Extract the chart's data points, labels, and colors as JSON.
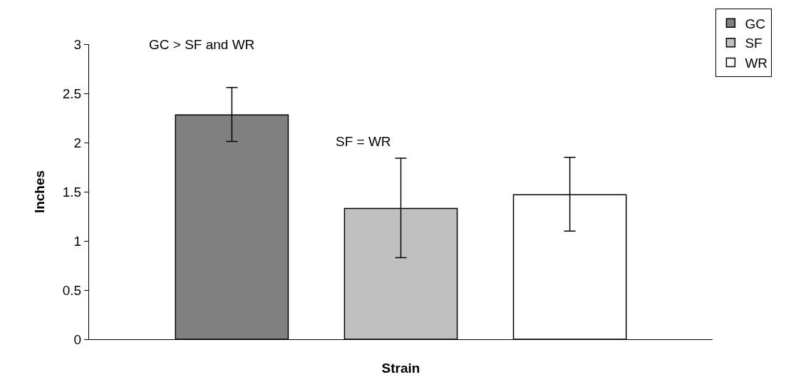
{
  "chart_data": {
    "type": "bar",
    "xlabel": "Strain",
    "ylabel": "Inches",
    "categories": [
      null
    ],
    "series": [
      {
        "name": "GC",
        "color": "#808080",
        "values": [
          2.28
        ],
        "errors": [
          [
            2.01,
            2.56
          ]
        ]
      },
      {
        "name": "SF",
        "color": "#c0c0c0",
        "values": [
          1.33
        ],
        "errors": [
          [
            0.83,
            1.84
          ]
        ]
      },
      {
        "name": "WR",
        "color": "#ffffff",
        "values": [
          1.47
        ],
        "errors": [
          [
            1.1,
            1.85
          ]
        ]
      }
    ],
    "annotations": [
      "GC > SF and WR",
      "SF = WR"
    ],
    "ylim": [
      0,
      3
    ],
    "yticks": [
      0,
      0.5,
      1,
      1.5,
      2,
      2.5,
      3
    ],
    "grid": false,
    "legend": "top right"
  }
}
